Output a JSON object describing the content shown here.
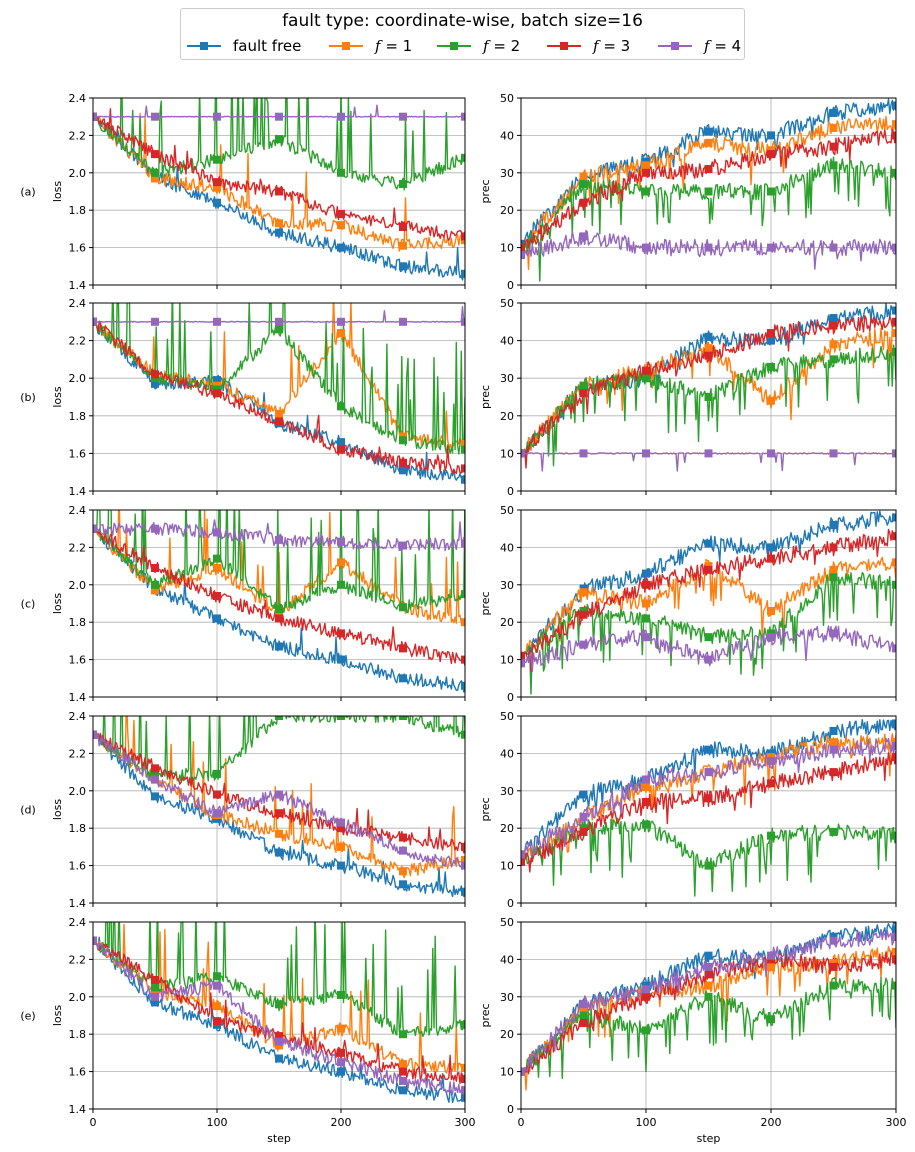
{
  "chart_title": "fault type: coordinate-wise, batch size=16",
  "legend": [
    {
      "label": "fault free",
      "color": "#1f77b4",
      "italic_var": false
    },
    {
      "label": "f = 1",
      "color": "#ff7f0e",
      "italic_var": true,
      "var": "f",
      "rest": " = 1"
    },
    {
      "label": "f = 2",
      "color": "#2ca02c",
      "italic_var": true,
      "var": "f",
      "rest": " = 2"
    },
    {
      "label": "f = 3",
      "color": "#d62728",
      "italic_var": true,
      "var": "f",
      "rest": " = 3"
    },
    {
      "label": "f = 4",
      "color": "#9467bd",
      "italic_var": true,
      "var": "f",
      "rest": " = 4"
    }
  ],
  "colors": [
    "#1f77b4",
    "#ff7f0e",
    "#2ca02c",
    "#d62728",
    "#9467bd"
  ],
  "chart_data": {
    "type": "line",
    "x_range": [
      0,
      300
    ],
    "x_ticks": [
      0,
      100,
      200,
      300
    ],
    "xlabel": "step",
    "marker_steps": [
      0,
      50,
      100,
      150,
      200,
      250,
      300
    ],
    "loss_axis": {
      "ylabel": "loss",
      "ylim": [
        1.4,
        2.4
      ],
      "ticks": [
        "1.4",
        "1.6",
        "1.8",
        "2.0",
        "2.2",
        "2.4"
      ]
    },
    "prec_axis": {
      "ylabel": "prec",
      "ylim": [
        0,
        50
      ],
      "ticks": [
        "0",
        "10",
        "20",
        "30",
        "40",
        "50"
      ]
    },
    "rows": [
      {
        "label": "(a)",
        "loss": [
          {
            "name": "fault free",
            "markers": [
              2.3,
              1.98,
              1.84,
              1.68,
              1.6,
              1.5,
              1.46
            ]
          },
          {
            "name": "f = 1",
            "markers": [
              2.3,
              1.97,
              1.92,
              1.73,
              1.72,
              1.61,
              1.64
            ]
          },
          {
            "name": "f = 2",
            "markers": [
              2.3,
              2.0,
              2.07,
              2.18,
              2.0,
              1.94,
              2.08
            ]
          },
          {
            "name": "f = 3",
            "markers": [
              2.3,
              2.1,
              1.95,
              1.9,
              1.78,
              1.71,
              1.66
            ]
          },
          {
            "name": "f = 4",
            "markers": [
              2.3,
              2.3,
              2.3,
              2.3,
              2.3,
              2.3,
              2.3
            ]
          }
        ],
        "prec": [
          {
            "name": "fault free",
            "markers": [
              11,
              29,
              33,
              41,
              40,
              46,
              48
            ]
          },
          {
            "name": "f = 1",
            "markers": [
              10,
              29,
              32,
              38,
              36,
              42,
              43
            ]
          },
          {
            "name": "f = 2",
            "markers": [
              9,
              27,
              25,
              25,
              25,
              32,
              30
            ]
          },
          {
            "name": "f = 3",
            "markers": [
              10,
              22,
              30,
              31,
              35,
              37,
              40
            ]
          },
          {
            "name": "f = 4",
            "markers": [
              8,
              13,
              10,
              10,
              10,
              10,
              10
            ]
          }
        ]
      },
      {
        "label": "(b)",
        "loss": [
          {
            "name": "fault free",
            "markers": [
              2.3,
              1.97,
              1.99,
              1.76,
              1.66,
              1.51,
              1.46
            ]
          },
          {
            "name": "f = 1",
            "markers": [
              2.3,
              2.02,
              1.96,
              1.81,
              2.24,
              1.69,
              1.65
            ]
          },
          {
            "name": "f = 2",
            "markers": [
              2.3,
              2.0,
              1.94,
              2.26,
              1.85,
              1.67,
              1.62
            ]
          },
          {
            "name": "f = 3",
            "markers": [
              2.3,
              2.02,
              1.92,
              1.77,
              1.62,
              1.55,
              1.52
            ]
          },
          {
            "name": "f = 4",
            "markers": [
              2.3,
              2.3,
              2.3,
              2.3,
              2.3,
              2.3,
              2.3
            ]
          }
        ],
        "prec": [
          {
            "name": "fault free",
            "markers": [
              10,
              28,
              30,
              41,
              40,
              46,
              48
            ]
          },
          {
            "name": "f = 1",
            "markers": [
              10,
              28,
              32,
              38,
              24,
              39,
              42
            ]
          },
          {
            "name": "f = 2",
            "markers": [
              10,
              28,
              30,
              25,
              33,
              35,
              37
            ]
          },
          {
            "name": "f = 3",
            "markers": [
              10,
              26,
              32,
              36,
              42,
              44,
              45
            ]
          },
          {
            "name": "f = 4",
            "markers": [
              10,
              10,
              10,
              10,
              10,
              10,
              10
            ]
          }
        ]
      },
      {
        "label": "(c)",
        "loss": [
          {
            "name": "fault free",
            "markers": [
              2.3,
              1.98,
              1.82,
              1.67,
              1.6,
              1.5,
              1.46
            ]
          },
          {
            "name": "f = 1",
            "markers": [
              2.3,
              1.97,
              2.09,
              1.85,
              2.12,
              1.88,
              1.8
            ]
          },
          {
            "name": "f = 2",
            "markers": [
              2.3,
              2.0,
              2.14,
              1.87,
              2.0,
              1.88,
              1.95
            ]
          },
          {
            "name": "f = 3",
            "markers": [
              2.3,
              2.09,
              1.94,
              1.82,
              1.74,
              1.66,
              1.6
            ]
          },
          {
            "name": "f = 4",
            "markers": [
              2.3,
              2.3,
              2.28,
              2.24,
              2.23,
              2.21,
              2.22
            ]
          }
        ],
        "prec": [
          {
            "name": "fault free",
            "markers": [
              11,
              29,
              33,
              41,
              40,
              46,
              48
            ]
          },
          {
            "name": "f = 1",
            "markers": [
              11,
              28,
              25,
              35,
              23,
              34,
              36
            ]
          },
          {
            "name": "f = 2",
            "markers": [
              11,
              23,
              21,
              16,
              17,
              32,
              30
            ]
          },
          {
            "name": "f = 3",
            "markers": [
              11,
              22,
              30,
              34,
              37,
              40,
              43
            ]
          },
          {
            "name": "f = 4",
            "markers": [
              9,
              14,
              16,
              10,
              16,
              17,
              13
            ]
          }
        ]
      },
      {
        "label": "(d)",
        "loss": [
          {
            "name": "fault free",
            "markers": [
              2.3,
              1.97,
              1.85,
              1.67,
              1.6,
              1.5,
              1.46
            ]
          },
          {
            "name": "f = 1",
            "markers": [
              2.3,
              2.06,
              1.87,
              1.77,
              1.7,
              1.57,
              1.63
            ]
          },
          {
            "name": "f = 2",
            "markers": [
              2.3,
              2.08,
              2.09,
              2.4,
              2.4,
              2.4,
              2.3
            ]
          },
          {
            "name": "f = 3",
            "markers": [
              2.3,
              2.12,
              1.98,
              1.88,
              1.8,
              1.75,
              1.7
            ]
          },
          {
            "name": "f = 4",
            "markers": [
              2.3,
              2.06,
              1.88,
              1.98,
              1.83,
              1.68,
              1.6
            ]
          }
        ],
        "prec": [
          {
            "name": "fault free",
            "markers": [
              13,
              29,
              33,
              41,
              40,
              46,
              48
            ]
          },
          {
            "name": "f = 1",
            "markers": [
              11,
              23,
              31,
              35,
              39,
              43,
              43
            ]
          },
          {
            "name": "f = 2",
            "markers": [
              11,
              20,
              21,
              10,
              18,
              19,
              18
            ]
          },
          {
            "name": "f = 3",
            "markers": [
              11,
              19,
              27,
              28,
              32,
              35,
              39
            ]
          },
          {
            "name": "f = 4",
            "markers": [
              13,
              23,
              33,
              35,
              38,
              41,
              42
            ]
          }
        ]
      },
      {
        "label": "(e)",
        "loss": [
          {
            "name": "fault free",
            "markers": [
              2.3,
              1.97,
              1.85,
              1.67,
              1.6,
              1.5,
              1.46
            ]
          },
          {
            "name": "f = 1",
            "markers": [
              2.3,
              2.03,
              1.95,
              1.74,
              1.83,
              1.64,
              1.62
            ]
          },
          {
            "name": "f = 2",
            "markers": [
              2.3,
              2.05,
              2.11,
              1.96,
              2.01,
              1.8,
              1.85
            ]
          },
          {
            "name": "f = 3",
            "markers": [
              2.3,
              2.09,
              1.87,
              1.79,
              1.7,
              1.6,
              1.56
            ]
          },
          {
            "name": "f = 4",
            "markers": [
              2.3,
              2.0,
              2.06,
              1.76,
              1.65,
              1.55,
              1.5
            ]
          }
        ],
        "prec": [
          {
            "name": "fault free",
            "markers": [
              10,
              28,
              33,
              41,
              40,
              46,
              48
            ]
          },
          {
            "name": "f = 1",
            "markers": [
              10,
              27,
              31,
              33,
              38,
              39,
              42
            ]
          },
          {
            "name": "f = 2",
            "markers": [
              10,
              25,
              21,
              30,
              24,
              33,
              33
            ]
          },
          {
            "name": "f = 3",
            "markers": [
              10,
              23,
              30,
              36,
              40,
              38,
              40
            ]
          },
          {
            "name": "f = 4",
            "markers": [
              10,
              28,
              32,
              38,
              41,
              45,
              46
            ]
          }
        ]
      }
    ]
  }
}
